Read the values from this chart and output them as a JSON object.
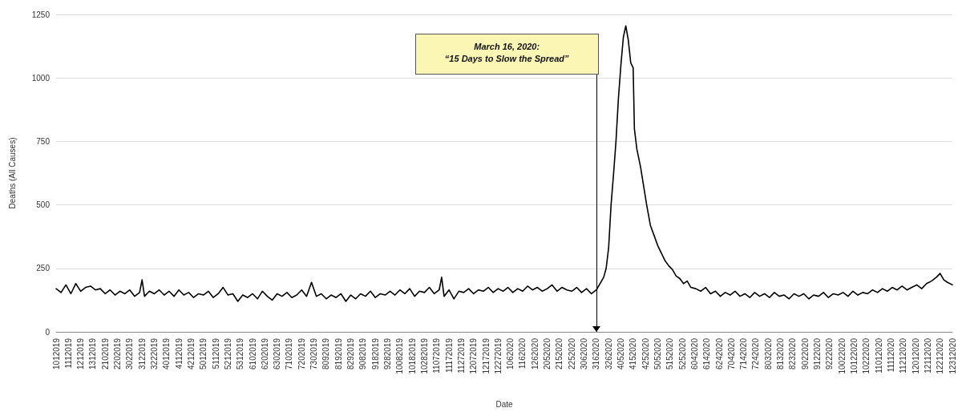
{
  "chart_data": {
    "type": "line",
    "xlabel": "Date",
    "ylabel": "Deaths (All Causes)",
    "color": "#000000",
    "grid": "y",
    "marker": "none",
    "line_style": "solid",
    "ref_lines": [
      {
        "axis": "x",
        "value": "2020-03-16",
        "label": "March 16, 2020:\n“15 Days to Slow the Spread”",
        "color": "#000000"
      }
    ],
    "xlim": [
      "2019-01-01",
      "2020-12-31"
    ],
    "ylim": [
      0,
      1250
    ],
    "yticks": [
      0,
      250,
      500,
      750,
      1000,
      1250
    ],
    "xticks": [
      {
        "value": "2019-01-01",
        "label": "1012019"
      },
      {
        "value": "2019-01-11",
        "label": "1112019"
      },
      {
        "value": "2019-01-21",
        "label": "1212019"
      },
      {
        "value": "2019-01-31",
        "label": "1312019"
      },
      {
        "value": "2019-02-10",
        "label": "2102019"
      },
      {
        "value": "2019-02-20",
        "label": "2202019"
      },
      {
        "value": "2019-03-02",
        "label": "3022019"
      },
      {
        "value": "2019-03-12",
        "label": "3122019"
      },
      {
        "value": "2019-03-22",
        "label": "3222019"
      },
      {
        "value": "2019-04-01",
        "label": "4012019"
      },
      {
        "value": "2019-04-11",
        "label": "4112019"
      },
      {
        "value": "2019-04-21",
        "label": "4212019"
      },
      {
        "value": "2019-05-01",
        "label": "5012019"
      },
      {
        "value": "2019-05-11",
        "label": "5112019"
      },
      {
        "value": "2019-05-21",
        "label": "5212019"
      },
      {
        "value": "2019-05-31",
        "label": "5312019"
      },
      {
        "value": "2019-06-10",
        "label": "6102019"
      },
      {
        "value": "2019-06-20",
        "label": "6202019"
      },
      {
        "value": "2019-06-30",
        "label": "6302019"
      },
      {
        "value": "2019-07-10",
        "label": "7102019"
      },
      {
        "value": "2019-07-20",
        "label": "7202019"
      },
      {
        "value": "2019-07-30",
        "label": "7302019"
      },
      {
        "value": "2019-08-09",
        "label": "8092019"
      },
      {
        "value": "2019-08-19",
        "label": "8192019"
      },
      {
        "value": "2019-08-29",
        "label": "8292019"
      },
      {
        "value": "2019-09-08",
        "label": "9082019"
      },
      {
        "value": "2019-09-18",
        "label": "9182019"
      },
      {
        "value": "2019-09-28",
        "label": "9282019"
      },
      {
        "value": "2019-10-08",
        "label": "10082019"
      },
      {
        "value": "2019-10-18",
        "label": "10182019"
      },
      {
        "value": "2019-10-28",
        "label": "10282019"
      },
      {
        "value": "2019-11-07",
        "label": "11072019"
      },
      {
        "value": "2019-11-17",
        "label": "11172019"
      },
      {
        "value": "2019-11-27",
        "label": "11272019"
      },
      {
        "value": "2019-12-07",
        "label": "12072019"
      },
      {
        "value": "2019-12-17",
        "label": "12172019"
      },
      {
        "value": "2019-12-27",
        "label": "12272019"
      },
      {
        "value": "2020-01-06",
        "label": "1062020"
      },
      {
        "value": "2020-01-16",
        "label": "1162020"
      },
      {
        "value": "2020-01-26",
        "label": "1262020"
      },
      {
        "value": "2020-02-05",
        "label": "2052020"
      },
      {
        "value": "2020-02-15",
        "label": "2152020"
      },
      {
        "value": "2020-02-25",
        "label": "2252020"
      },
      {
        "value": "2020-03-06",
        "label": "3062020"
      },
      {
        "value": "2020-03-16",
        "label": "3162020"
      },
      {
        "value": "2020-03-26",
        "label": "3262020"
      },
      {
        "value": "2020-04-05",
        "label": "4052020"
      },
      {
        "value": "2020-04-15",
        "label": "4152020"
      },
      {
        "value": "2020-04-25",
        "label": "4252020"
      },
      {
        "value": "2020-05-05",
        "label": "5052020"
      },
      {
        "value": "2020-05-15",
        "label": "5152020"
      },
      {
        "value": "2020-05-25",
        "label": "5252020"
      },
      {
        "value": "2020-06-04",
        "label": "6042020"
      },
      {
        "value": "2020-06-14",
        "label": "6142020"
      },
      {
        "value": "2020-06-24",
        "label": "6242020"
      },
      {
        "value": "2020-07-04",
        "label": "7042020"
      },
      {
        "value": "2020-07-14",
        "label": "7142020"
      },
      {
        "value": "2020-07-24",
        "label": "7242020"
      },
      {
        "value": "2020-08-03",
        "label": "8032020"
      },
      {
        "value": "2020-08-13",
        "label": "8132020"
      },
      {
        "value": "2020-08-23",
        "label": "8232020"
      },
      {
        "value": "2020-09-02",
        "label": "9022020"
      },
      {
        "value": "2020-09-12",
        "label": "9122020"
      },
      {
        "value": "2020-09-22",
        "label": "9222020"
      },
      {
        "value": "2020-10-02",
        "label": "10022020"
      },
      {
        "value": "2020-10-12",
        "label": "10122020"
      },
      {
        "value": "2020-10-22",
        "label": "10222020"
      },
      {
        "value": "2020-11-01",
        "label": "11012020"
      },
      {
        "value": "2020-11-11",
        "label": "11112020"
      },
      {
        "value": "2020-11-21",
        "label": "11212020"
      },
      {
        "value": "2020-12-01",
        "label": "12012020"
      },
      {
        "value": "2020-12-11",
        "label": "12112020"
      },
      {
        "value": "2020-12-21",
        "label": "12212020"
      },
      {
        "value": "2020-12-31",
        "label": "12312020"
      }
    ],
    "x": [
      "2019-01-01",
      "2019-01-05",
      "2019-01-09",
      "2019-01-13",
      "2019-01-17",
      "2019-01-21",
      "2019-01-25",
      "2019-01-29",
      "2019-02-02",
      "2019-02-06",
      "2019-02-10",
      "2019-02-14",
      "2019-02-18",
      "2019-02-22",
      "2019-02-26",
      "2019-03-02",
      "2019-03-06",
      "2019-03-10",
      "2019-03-12",
      "2019-03-14",
      "2019-03-18",
      "2019-03-22",
      "2019-03-26",
      "2019-03-30",
      "2019-04-03",
      "2019-04-07",
      "2019-04-11",
      "2019-04-15",
      "2019-04-19",
      "2019-04-23",
      "2019-04-27",
      "2019-05-01",
      "2019-05-05",
      "2019-05-09",
      "2019-05-13",
      "2019-05-17",
      "2019-05-21",
      "2019-05-25",
      "2019-05-29",
      "2019-06-02",
      "2019-06-06",
      "2019-06-10",
      "2019-06-14",
      "2019-06-18",
      "2019-06-22",
      "2019-06-26",
      "2019-06-30",
      "2019-07-04",
      "2019-07-08",
      "2019-07-12",
      "2019-07-16",
      "2019-07-20",
      "2019-07-24",
      "2019-07-28",
      "2019-08-01",
      "2019-08-05",
      "2019-08-09",
      "2019-08-13",
      "2019-08-17",
      "2019-08-21",
      "2019-08-25",
      "2019-08-29",
      "2019-09-02",
      "2019-09-06",
      "2019-09-10",
      "2019-09-14",
      "2019-09-18",
      "2019-09-22",
      "2019-09-26",
      "2019-09-30",
      "2019-10-04",
      "2019-10-08",
      "2019-10-12",
      "2019-10-16",
      "2019-10-20",
      "2019-10-24",
      "2019-10-28",
      "2019-11-01",
      "2019-11-05",
      "2019-11-09",
      "2019-11-11",
      "2019-11-13",
      "2019-11-17",
      "2019-11-21",
      "2019-11-25",
      "2019-11-29",
      "2019-12-03",
      "2019-12-07",
      "2019-12-11",
      "2019-12-15",
      "2019-12-19",
      "2019-12-23",
      "2019-12-27",
      "2019-12-31",
      "2020-01-04",
      "2020-01-08",
      "2020-01-12",
      "2020-01-16",
      "2020-01-20",
      "2020-01-24",
      "2020-01-28",
      "2020-02-01",
      "2020-02-05",
      "2020-02-09",
      "2020-02-13",
      "2020-02-17",
      "2020-02-21",
      "2020-02-25",
      "2020-02-29",
      "2020-03-04",
      "2020-03-08",
      "2020-03-12",
      "2020-03-16",
      "2020-03-19",
      "2020-03-22",
      "2020-03-24",
      "2020-03-26",
      "2020-03-28",
      "2020-03-30",
      "2020-04-01",
      "2020-04-03",
      "2020-04-05",
      "2020-04-07",
      "2020-04-09",
      "2020-04-11",
      "2020-04-13",
      "2020-04-15",
      "2020-04-16",
      "2020-04-18",
      "2020-04-21",
      "2020-04-24",
      "2020-04-26",
      "2020-04-29",
      "2020-05-02",
      "2020-05-05",
      "2020-05-08",
      "2020-05-11",
      "2020-05-14",
      "2020-05-17",
      "2020-05-20",
      "2020-05-23",
      "2020-05-26",
      "2020-05-29",
      "2020-06-01",
      "2020-06-05",
      "2020-06-09",
      "2020-06-13",
      "2020-06-17",
      "2020-06-21",
      "2020-06-25",
      "2020-06-29",
      "2020-07-03",
      "2020-07-07",
      "2020-07-11",
      "2020-07-15",
      "2020-07-19",
      "2020-07-23",
      "2020-07-27",
      "2020-07-31",
      "2020-08-04",
      "2020-08-08",
      "2020-08-12",
      "2020-08-16",
      "2020-08-20",
      "2020-08-24",
      "2020-08-28",
      "2020-09-01",
      "2020-09-05",
      "2020-09-09",
      "2020-09-13",
      "2020-09-17",
      "2020-09-21",
      "2020-09-25",
      "2020-09-29",
      "2020-10-03",
      "2020-10-07",
      "2020-10-11",
      "2020-10-15",
      "2020-10-19",
      "2020-10-23",
      "2020-10-27",
      "2020-10-31",
      "2020-11-04",
      "2020-11-08",
      "2020-11-12",
      "2020-11-16",
      "2020-11-20",
      "2020-11-24",
      "2020-11-28",
      "2020-12-02",
      "2020-12-06",
      "2020-12-10",
      "2020-12-14",
      "2020-12-18",
      "2020-12-21",
      "2020-12-24",
      "2020-12-27",
      "2020-12-31"
    ],
    "values": [
      170,
      155,
      185,
      150,
      190,
      160,
      175,
      180,
      165,
      170,
      150,
      165,
      145,
      160,
      150,
      165,
      140,
      155,
      205,
      140,
      160,
      150,
      165,
      145,
      160,
      140,
      165,
      145,
      155,
      135,
      150,
      145,
      160,
      135,
      150,
      175,
      145,
      150,
      120,
      145,
      135,
      150,
      130,
      160,
      140,
      125,
      150,
      140,
      155,
      135,
      145,
      165,
      140,
      195,
      140,
      150,
      130,
      145,
      135,
      150,
      120,
      145,
      130,
      150,
      140,
      160,
      135,
      150,
      145,
      160,
      145,
      165,
      150,
      170,
      140,
      160,
      155,
      175,
      150,
      165,
      215,
      140,
      165,
      130,
      160,
      155,
      170,
      150,
      165,
      160,
      175,
      155,
      170,
      160,
      175,
      155,
      170,
      160,
      180,
      165,
      175,
      160,
      170,
      185,
      160,
      175,
      165,
      160,
      175,
      155,
      170,
      150,
      165,
      190,
      215,
      250,
      330,
      500,
      620,
      750,
      920,
      1050,
      1160,
      1205,
      1150,
      1060,
      1040,
      800,
      720,
      650,
      560,
      500,
      420,
      380,
      340,
      310,
      280,
      260,
      245,
      220,
      210,
      190,
      200,
      175,
      170,
      160,
      175,
      150,
      160,
      140,
      155,
      145,
      160,
      140,
      150,
      135,
      155,
      140,
      150,
      135,
      155,
      140,
      145,
      130,
      150,
      140,
      150,
      130,
      145,
      140,
      155,
      135,
      150,
      145,
      155,
      140,
      160,
      145,
      155,
      150,
      165,
      155,
      170,
      160,
      175,
      165,
      180,
      165,
      175,
      185,
      170,
      190,
      200,
      215,
      230,
      205,
      195,
      185
    ]
  }
}
